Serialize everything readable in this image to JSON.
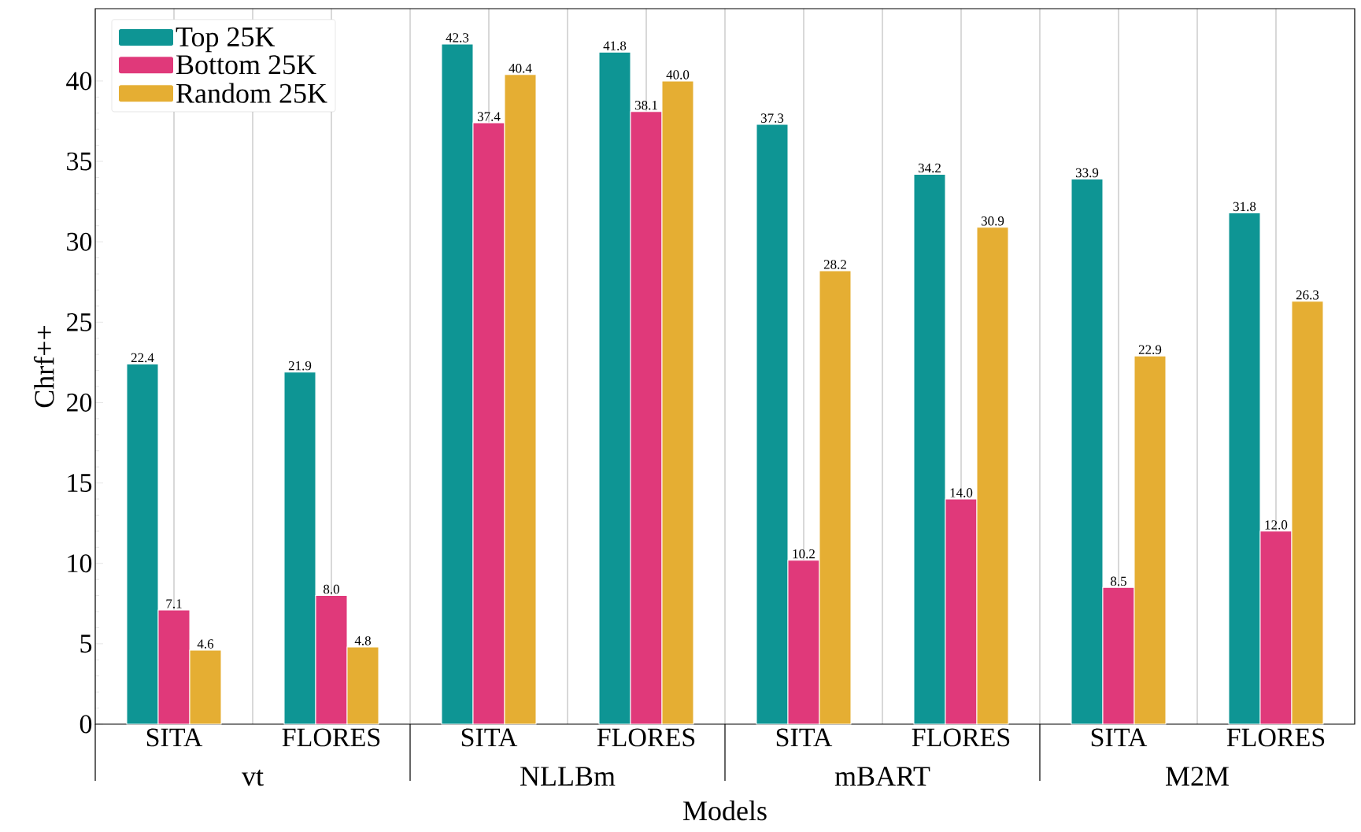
{
  "chart_data": {
    "type": "bar",
    "xlabel": "Models",
    "ylabel": "Chrf++",
    "categories": [
      "SITA",
      "FLORES",
      "SITA",
      "FLORES",
      "SITA",
      "FLORES",
      "SITA",
      "FLORES"
    ],
    "annotations": [
      "vt",
      "NLLBm",
      "mBART",
      "M2M"
    ],
    "series": [
      {
        "name": "Top 25K",
        "color": "#0e9594",
        "values": [
          22.4,
          21.9,
          42.3,
          41.8,
          37.3,
          34.2,
          33.9,
          31.8
        ],
        "value_labels": [
          "22.4",
          "21.9",
          "42.3",
          "41.8",
          "37.3",
          "34.2",
          "33.9",
          "31.8"
        ]
      },
      {
        "name": "Bottom 25K",
        "color": "#e0397a",
        "values": [
          7.1,
          8.0,
          37.4,
          38.1,
          10.2,
          14.0,
          8.5,
          12.0
        ],
        "value_labels": [
          "7.1",
          "8.0",
          "37.4",
          "38.1",
          "10.2",
          "14.0",
          "8.5",
          "12.0"
        ]
      },
      {
        "name": "Random 25K",
        "color": "#e5ae33",
        "values": [
          4.6,
          4.8,
          40.4,
          40.0,
          28.2,
          30.9,
          22.9,
          26.3
        ],
        "value_labels": [
          "4.6",
          "4.8",
          "40.4",
          "40.0",
          "28.2",
          "30.9",
          "22.9",
          "26.3"
        ]
      }
    ],
    "ylim": [
      0,
      44.5
    ],
    "yticks": [
      0,
      5,
      10,
      15,
      20,
      25,
      30,
      35,
      40
    ],
    "legend": "top left",
    "grid": "x"
  }
}
